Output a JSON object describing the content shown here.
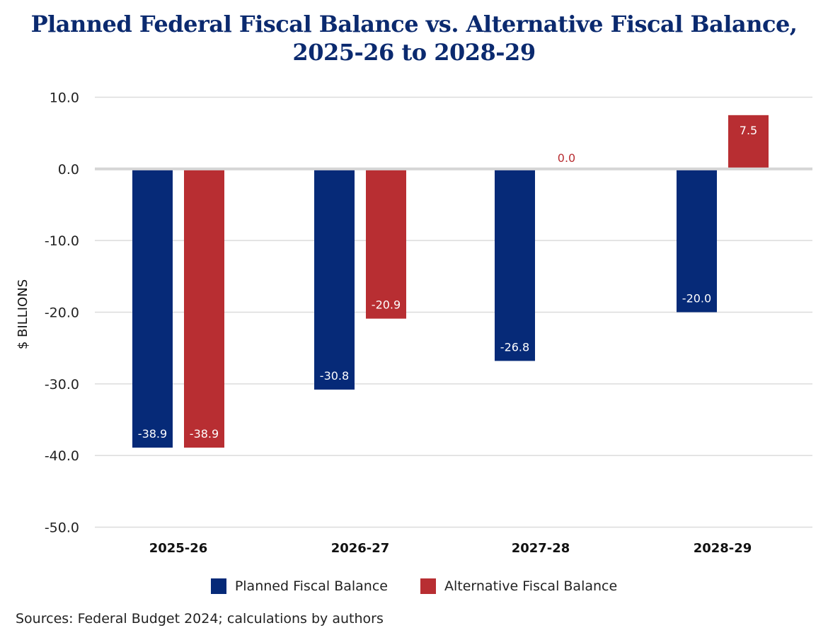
{
  "title_line1": "Planned Federal Fiscal Balance vs. Alternative Fiscal Balance,",
  "title_line2": "2025-26 to 2028-29",
  "source": "Sources: Federal Budget 2024; calculations by authors",
  "colors": {
    "planned": "#062a78",
    "alternative": "#b82e32",
    "title": "#0b2a6f",
    "grid": "#dcdcdc",
    "zero": "#d6d6d6"
  },
  "chart_data": {
    "type": "bar",
    "categories": [
      "2025-26",
      "2026-27",
      "2027-28",
      "2028-29"
    ],
    "series": [
      {
        "name": "Planned Fiscal Balance",
        "values": [
          -38.9,
          -30.8,
          -26.8,
          -20.0
        ],
        "labels": [
          "-38.9",
          "-30.8",
          "-26.8",
          "-20.0"
        ]
      },
      {
        "name": "Alternative Fiscal Balance",
        "values": [
          -38.9,
          -20.9,
          0.0,
          7.5
        ],
        "labels": [
          "-38.9",
          "-20.9",
          "0.0",
          "7.5"
        ]
      }
    ],
    "ylabel": "$ BILLIONS",
    "xlabel": "",
    "ylim": [
      -50,
      10
    ],
    "yticks": [
      10,
      0,
      -10,
      -20,
      -30,
      -40,
      -50
    ],
    "ytick_labels": [
      "10.0",
      "0.0",
      "-10.0",
      "-20.0",
      "-30.0",
      "-40.0",
      "-50.0"
    ],
    "grid": true,
    "legend_position": "bottom"
  }
}
